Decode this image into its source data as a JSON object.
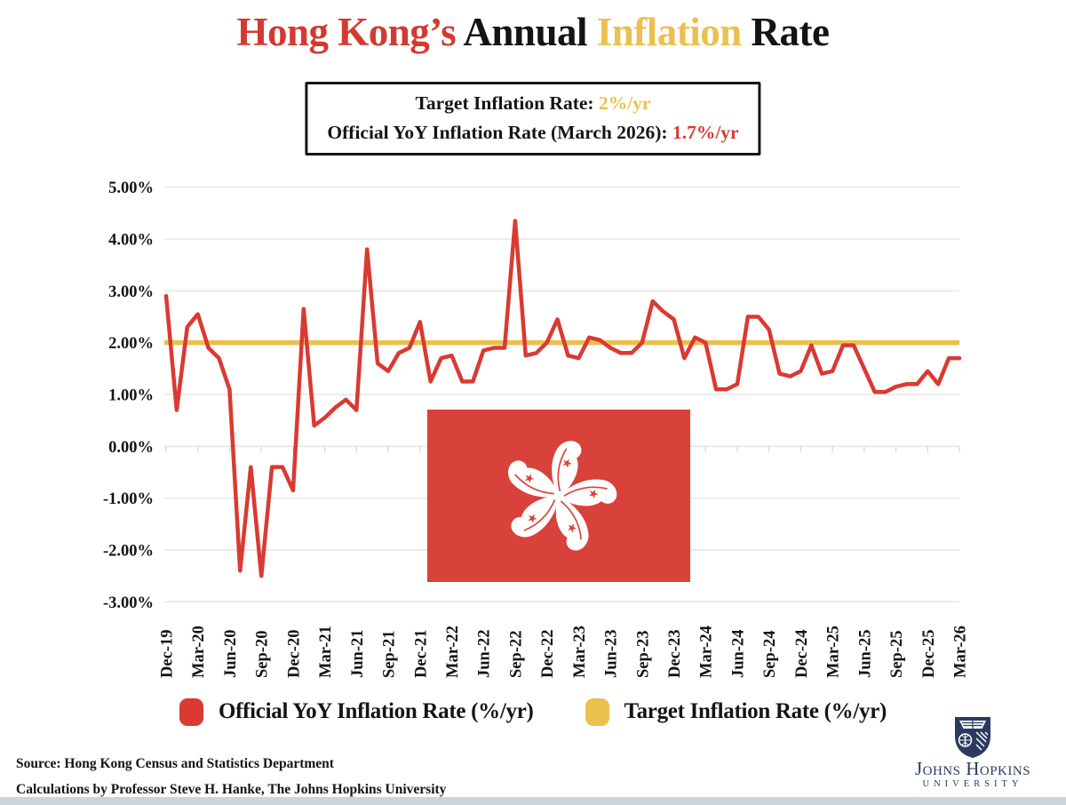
{
  "title": {
    "part1": "Hong Kong’s",
    "part2": "Annual",
    "part3": "Inflation",
    "part4": "Rate"
  },
  "info_box": {
    "line1_label": "Target Inflation Rate:",
    "line1_value": "2%/yr",
    "line2_label": "Official YoY Inflation Rate (March 2026):",
    "line2_value": "1.7%/yr"
  },
  "legend": [
    {
      "label": "Official YoY Inflation Rate (%/yr)",
      "color": "#d93a32"
    },
    {
      "label": "Target Inflation Rate (%/yr)",
      "color": "#ecc04e"
    }
  ],
  "source": {
    "line1": "Source: Hong Kong Census and Statistics Department",
    "line2": "Calculations by Professor Steve H. Hanke, The Johns Hopkins University"
  },
  "logo": {
    "name": "Johns Hopkins",
    "sub": "UNIVERSITY"
  },
  "colors": {
    "line_red": "#d93a32",
    "target_yellow": "#ecc04e",
    "flag_red": "#d8423a",
    "grid_gray": "#e9e9e9",
    "navy": "#2b3a5e"
  },
  "chart_data": {
    "type": "line",
    "frequency": "monthly",
    "start_month": "Dec-19",
    "end_month": "Mar-26",
    "n_points": 76,
    "ylim": [
      -3,
      5
    ],
    "grid": "horizontal",
    "y_tick_labels": [
      "5.00%",
      "4.00%",
      "3.00%",
      "2.00%",
      "1.00%",
      "0.00%",
      "-1.00%",
      "-2.00%",
      "-3.00%"
    ],
    "x_tick_labels": [
      "Dec-19",
      "Mar-20",
      "Jun-20",
      "Sep-20",
      "Dec-20",
      "Mar-21",
      "Jun-21",
      "Sep-21",
      "Dec-21",
      "Mar-22",
      "Jun-22",
      "Sep-22",
      "Dec-22",
      "Mar-23",
      "Jun-23",
      "Sep-23",
      "Dec-23",
      "Mar-24",
      "Jun-24",
      "Sep-24",
      "Dec-24",
      "Mar-25",
      "Jun-25",
      "Sep-25",
      "Dec-25",
      "Mar-26"
    ],
    "series": [
      {
        "name": "Official YoY Inflation Rate (%/yr)",
        "color": "#d93a32",
        "values": [
          2.9,
          0.7,
          2.3,
          2.55,
          1.9,
          1.7,
          1.1,
          -2.4,
          -0.4,
          -2.5,
          -0.4,
          -0.4,
          -0.85,
          2.65,
          0.4,
          0.55,
          0.75,
          0.9,
          0.7,
          3.8,
          1.6,
          1.45,
          1.8,
          1.9,
          2.4,
          1.25,
          1.7,
          1.75,
          1.25,
          1.25,
          1.85,
          1.9,
          1.9,
          4.35,
          1.75,
          1.8,
          2.0,
          2.45,
          1.75,
          1.7,
          2.1,
          2.05,
          1.9,
          1.8,
          1.8,
          2.0,
          2.8,
          2.6,
          2.45,
          1.7,
          2.1,
          2.0,
          1.1,
          1.1,
          1.2,
          2.5,
          2.5,
          2.25,
          1.4,
          1.35,
          1.45,
          1.95,
          1.4,
          1.45,
          1.95,
          1.95,
          1.5,
          1.05,
          1.05,
          1.15,
          1.2,
          1.2,
          1.45,
          1.2,
          1.7,
          1.7
        ]
      },
      {
        "name": "Target Inflation Rate (%/yr)",
        "color": "#ecc04e",
        "value": 2.0
      }
    ]
  }
}
